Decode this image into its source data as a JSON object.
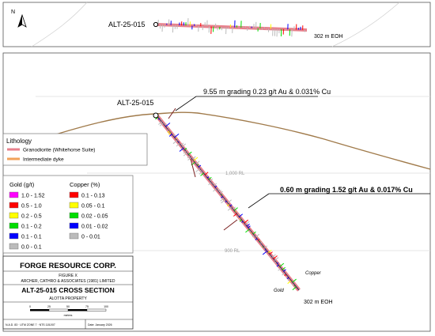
{
  "plan_view": {
    "north_label": "N",
    "hole_label": "ALT-25-015",
    "eoh_label": "302 m EOH"
  },
  "section": {
    "hole_label": "ALT-25-015",
    "callout_1": "9.55 m grading 0.23 g/t Au & 0.031% Cu",
    "callout_2": "0.60 m grading 1.52 g/t Au & 0.017% Cu",
    "rl_1000": "1,000 RL",
    "rl_900": "900 RL",
    "copper_label": "Copper",
    "gold_label": "Gold",
    "eoh_label": "302 m EOH"
  },
  "lithology_legend": {
    "title": "Lithology",
    "items": [
      {
        "label": "Granodiorite (Whitehorse Suite)",
        "color": "#e8808c"
      },
      {
        "label": "Intermediate dyke",
        "color": "#f2a25a"
      }
    ]
  },
  "assay_legend": {
    "gold_title": "Gold (g/t)",
    "copper_title": "Copper (%)",
    "gold_items": [
      {
        "label": "1.0 - 1.52",
        "color": "#ff00ff"
      },
      {
        "label": "0.5 - 1.0",
        "color": "#ff0000"
      },
      {
        "label": "0.2 - 0.5",
        "color": "#ffff00"
      },
      {
        "label": "0.1 - 0.2",
        "color": "#00dd00"
      },
      {
        "label": "0.1 - 0.1",
        "color": "#0000ff"
      },
      {
        "label": "0.0 - 0.1",
        "color": "#bbbbbb"
      }
    ],
    "copper_items": [
      {
        "label": "0.1 - 0.13",
        "color": "#ff0000"
      },
      {
        "label": "0.05 - 0.1",
        "color": "#ffff00"
      },
      {
        "label": "0.02 - 0.05",
        "color": "#00dd00"
      },
      {
        "label": "0.01 - 0.02",
        "color": "#0000ff"
      },
      {
        "label": "0 - 0.01",
        "color": "#bbbbbb"
      }
    ]
  },
  "title_block": {
    "company": "FORGE RESOURCE CORP.",
    "figure": "FIGURE X",
    "consultant": "ARCHER, CATHRO & ASSOCIATES (1981) LIMITED",
    "title": "ALT-25-015 CROSS SECTION",
    "property": "ALOTTA PROPERTY",
    "scale_ticks": [
      "0",
      "25",
      "50",
      "75",
      "100"
    ],
    "scale_unit": "metres",
    "footer_left": "N.A.D. 83 · UTM ZONE 7 · NTS 115J/07",
    "footer_right": "Date: January 2026"
  },
  "colors": {
    "terrain": "#a07a4a",
    "hole": "#e8808c",
    "trace_dark": "#2a2a5a"
  }
}
